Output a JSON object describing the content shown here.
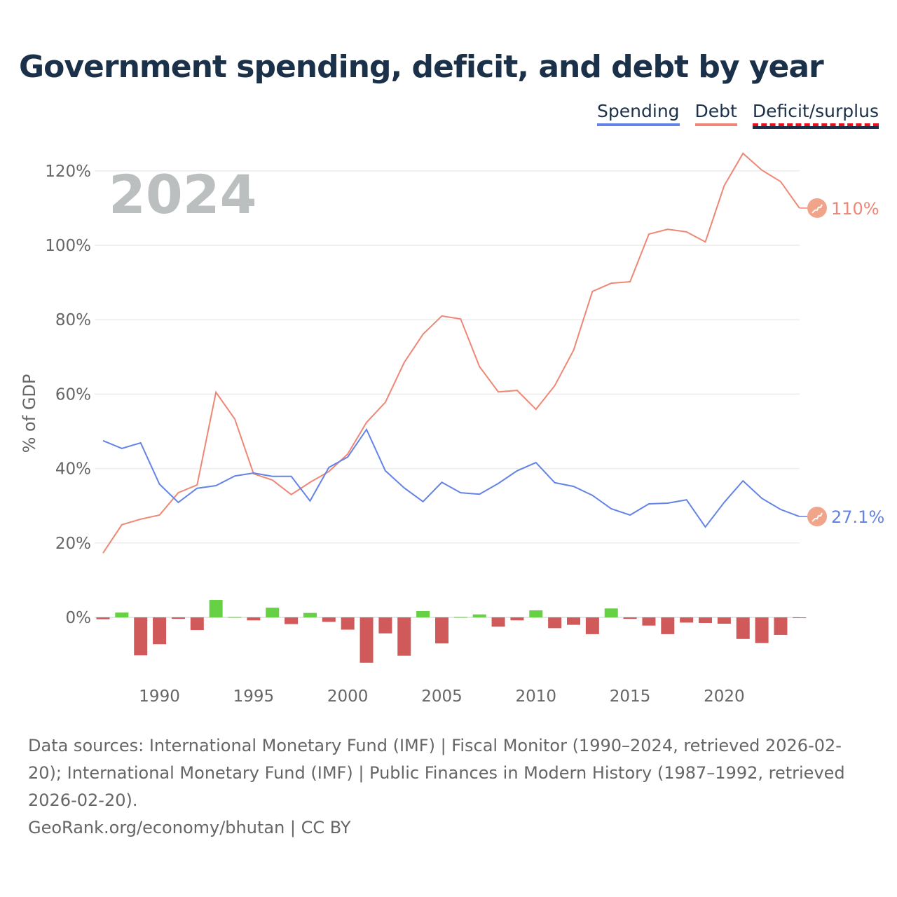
{
  "chart_data": {
    "type": "line",
    "title": "Government spending, deficit, and debt by year",
    "ylabel": "% of GDP",
    "xlabel": "",
    "year_watermark": "2024",
    "ylim": [
      -12.5,
      125
    ],
    "xlim": [
      1987,
      2024
    ],
    "y_ticks": [
      "0%",
      "20%",
      "40%",
      "60%",
      "80%",
      "100%",
      "120%"
    ],
    "y_tick_values": [
      0,
      20,
      40,
      60,
      80,
      100,
      120
    ],
    "x_ticks": [
      "1990",
      "1995",
      "2000",
      "2005",
      "2010",
      "2015",
      "2020"
    ],
    "x_tick_values": [
      1990,
      1995,
      2000,
      2005,
      2010,
      2015,
      2020
    ],
    "grid": true,
    "legend_position": "top-right",
    "legend": [
      "Spending",
      "Debt",
      "Deficit/surplus"
    ],
    "colors": {
      "spending": "#6383e6",
      "debt": "#ee8776",
      "surplus": "#66d145",
      "deficit": "#d05a5a",
      "title": "#1b3049"
    },
    "years": [
      1987,
      1988,
      1989,
      1990,
      1991,
      1992,
      1993,
      1994,
      1995,
      1996,
      1997,
      1998,
      1999,
      2000,
      2001,
      2002,
      2003,
      2004,
      2005,
      2006,
      2007,
      2008,
      2009,
      2010,
      2011,
      2012,
      2013,
      2014,
      2015,
      2016,
      2017,
      2018,
      2019,
      2020,
      2021,
      2022,
      2023,
      2024
    ],
    "series": [
      {
        "name": "Spending",
        "type": "line",
        "end_label": "27.1%",
        "values": [
          47.5,
          45.4,
          46.9,
          35.8,
          30.9,
          34.7,
          35.4,
          38.0,
          38.8,
          37.9,
          37.9,
          31.3,
          40.3,
          43.1,
          50.5,
          39.4,
          34.8,
          31.1,
          36.3,
          33.5,
          33.1,
          36.0,
          39.4,
          41.6,
          36.2,
          35.2,
          32.8,
          29.2,
          27.5,
          30.5,
          30.7,
          31.6,
          24.3,
          30.9,
          36.7,
          32.0,
          29.0,
          27.1
        ]
      },
      {
        "name": "Debt",
        "type": "line",
        "end_label": "110%",
        "values": [
          17.3,
          24.9,
          26.4,
          27.5,
          33.5,
          35.6,
          60.5,
          53.3,
          38.6,
          36.9,
          33.0,
          36.3,
          39.2,
          43.9,
          52.4,
          57.8,
          68.5,
          76.1,
          81.0,
          80.2,
          67.4,
          60.6,
          61.0,
          55.9,
          62.3,
          71.8,
          87.6,
          89.8,
          90.2,
          103.0,
          104.3,
          103.6,
          100.9,
          116.0,
          124.7,
          120.2,
          117.1,
          110.0
        ]
      },
      {
        "name": "Deficit/surplus",
        "type": "bar",
        "values": [
          -0.5,
          1.3,
          -10.2,
          -7.2,
          -0.4,
          -3.4,
          4.7,
          0.1,
          -0.8,
          2.6,
          -1.8,
          1.2,
          -1.2,
          -3.3,
          -12.2,
          -4.3,
          -10.3,
          1.7,
          -7.0,
          0.1,
          0.8,
          -2.5,
          -0.8,
          1.9,
          -2.9,
          -2.0,
          -4.5,
          2.4,
          -0.4,
          -2.2,
          -4.5,
          -1.4,
          -1.5,
          -1.7,
          -5.8,
          -6.9,
          -4.7,
          -0.2
        ]
      }
    ]
  },
  "footer": {
    "sources": "Data sources: International Monetary Fund (IMF) | Fiscal Monitor (1990–2024, retrieved 2026-02-20); International Monetary Fund (IMF) | Public Finances in Modern History (1987–1992, retrieved 2026-02-20).",
    "credit": "GeoRank.org/economy/bhutan | CC BY"
  }
}
